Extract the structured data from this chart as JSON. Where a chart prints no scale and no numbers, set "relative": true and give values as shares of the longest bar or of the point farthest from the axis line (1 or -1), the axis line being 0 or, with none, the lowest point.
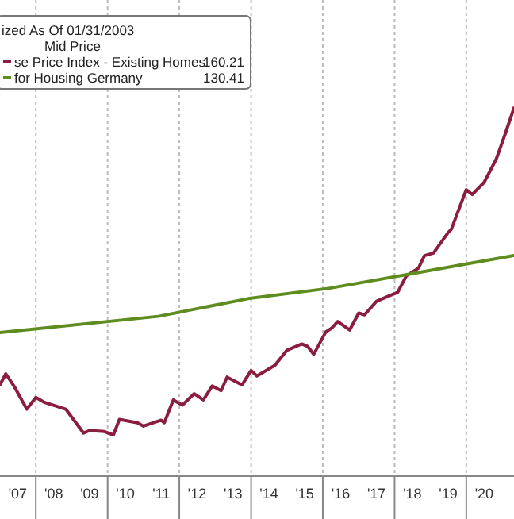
{
  "chart_data": {
    "type": "line",
    "title": "ized As Of 01/31/2003",
    "legend_title": "Mid Price",
    "relative": true,
    "xlim": [
      "2007-01",
      "2021-05"
    ],
    "xticks": [
      {
        "value": "2007-07",
        "label": "'07"
      },
      {
        "value": "2008-01",
        "label": null
      },
      {
        "value": "2008-07",
        "label": "'08"
      },
      {
        "value": "2009-07",
        "label": "'09"
      },
      {
        "value": "2010-01",
        "label": null
      },
      {
        "value": "2010-07",
        "label": "'10"
      },
      {
        "value": "2011-07",
        "label": "'11"
      },
      {
        "value": "2012-01",
        "label": null
      },
      {
        "value": "2012-07",
        "label": "'12"
      },
      {
        "value": "2013-07",
        "label": "'13"
      },
      {
        "value": "2014-01",
        "label": null
      },
      {
        "value": "2014-07",
        "label": "'14"
      },
      {
        "value": "2015-07",
        "label": "'15"
      },
      {
        "value": "2016-01",
        "label": null
      },
      {
        "value": "2016-07",
        "label": "'16"
      },
      {
        "value": "2017-07",
        "label": "'17"
      },
      {
        "value": "2018-01",
        "label": null
      },
      {
        "value": "2018-07",
        "label": "'18"
      },
      {
        "value": "2019-07",
        "label": "'19"
      },
      {
        "value": "2020-01",
        "label": null
      },
      {
        "value": "2020-07",
        "label": "'20"
      }
    ],
    "grid": "x",
    "legend": "top left",
    "line_style": "solid",
    "marker": "none",
    "annotations": [
      "160.21",
      "130.41"
    ],
    "series": [
      {
        "name": "se Price Index - Existing Homes",
        "color": "#8b1e3f",
        "x": [
          "2007-01",
          "2007-03",
          "2007-06",
          "2007-10",
          "2008-01",
          "2008-04",
          "2008-11",
          "2009-05",
          "2009-07",
          "2009-12",
          "2010-03",
          "2010-05",
          "2010-11",
          "2011-01",
          "2011-07",
          "2011-08",
          "2011-11",
          "2012-02",
          "2012-06",
          "2012-09",
          "2012-12",
          "2013-03",
          "2013-05",
          "2013-10",
          "2014-01",
          "2014-03",
          "2014-09",
          "2015-01",
          "2015-06",
          "2015-08",
          "2015-10",
          "2016-02",
          "2016-04",
          "2016-06",
          "2016-10",
          "2017-01",
          "2017-03",
          "2017-07",
          "2017-11",
          "2018-02",
          "2018-05",
          "2018-09",
          "2018-11",
          "2019-02",
          "2019-07",
          "2019-08",
          "2020-01",
          "2020-03",
          "2020-07",
          "2020-11",
          "2021-02",
          "2021-05"
        ],
        "values": [
          0.248,
          0.278,
          0.241,
          0.182,
          0.214,
          0.2,
          0.182,
          0.117,
          0.124,
          0.121,
          0.112,
          0.154,
          0.145,
          0.136,
          0.152,
          0.145,
          0.207,
          0.193,
          0.224,
          0.207,
          0.245,
          0.232,
          0.269,
          0.248,
          0.287,
          0.272,
          0.301,
          0.342,
          0.359,
          0.352,
          0.331,
          0.392,
          0.402,
          0.42,
          0.397,
          0.443,
          0.438,
          0.475,
          0.489,
          0.499,
          0.544,
          0.565,
          0.599,
          0.606,
          0.662,
          0.67,
          0.778,
          0.765,
          0.798,
          0.861,
          0.93,
          1
        ]
      },
      {
        "name": "for Housing Germany",
        "color": "#5e8c1e",
        "x": [
          "2007-01",
          "2011-06",
          "2013-12",
          "2016-03",
          "2018-07",
          "2021-05"
        ],
        "values": [
          0.39,
          0.434,
          0.482,
          0.51,
          0.55,
          0.599
        ]
      }
    ]
  }
}
